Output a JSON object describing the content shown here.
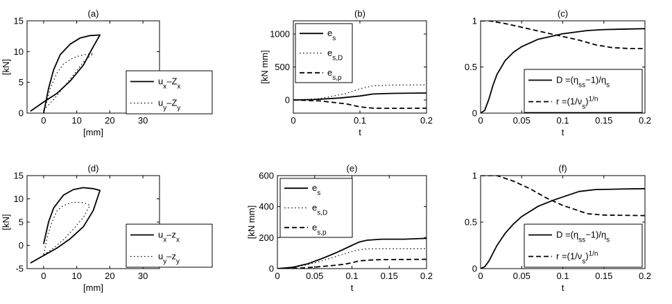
{
  "colors": {
    "line": "#000000",
    "background": "#ffffff"
  },
  "chart_data": [
    {
      "id": "a",
      "type": "line",
      "title": "(a)",
      "xlabel": "[mm]",
      "ylabel": "[kN]",
      "xlim": [
        -5,
        35
      ],
      "ylim": [
        0,
        15
      ],
      "xticks": [
        0,
        10,
        20,
        30
      ],
      "yticks": [
        0,
        5,
        10,
        15
      ],
      "grid": false,
      "legend_position": "bottom-right",
      "series": [
        {
          "name": "u_x–Z_x",
          "name_main": "u",
          "name_sub": "x",
          "name_mid": "–Z",
          "name_sub2": "x",
          "style": "solid",
          "points": [
            [
              -4,
              0.3
            ],
            [
              0,
              1.8
            ],
            [
              4,
              3.2
            ],
            [
              8,
              5.2
            ],
            [
              12,
              7.8
            ],
            [
              15,
              10.8
            ],
            [
              17,
              12.7
            ],
            [
              14,
              12.6
            ],
            [
              11,
              12.2
            ],
            [
              8,
              11.2
            ],
            [
              5,
              9.5
            ],
            [
              3,
              7
            ],
            [
              1.5,
              4
            ],
            [
              0,
              0
            ]
          ]
        },
        {
          "name": "u_y–Z_y",
          "name_main": "u",
          "name_sub": "y",
          "name_mid": "–Z",
          "name_sub2": "y",
          "style": "dotted",
          "points": [
            [
              0,
              0.5
            ],
            [
              3,
              2.2
            ],
            [
              6,
              4.2
            ],
            [
              9,
              6.2
            ],
            [
              12,
              8.3
            ],
            [
              15,
              9.7
            ],
            [
              12,
              9.5
            ],
            [
              9,
              9
            ],
            [
              6,
              8
            ],
            [
              4,
              6.5
            ],
            [
              2,
              4
            ],
            [
              0.8,
              1.5
            ],
            [
              0,
              0.5
            ]
          ]
        }
      ]
    },
    {
      "id": "b",
      "type": "line",
      "title": "(b)",
      "xlabel": "t",
      "ylabel": "[kN mm]",
      "xlim": [
        0,
        0.2
      ],
      "ylim": [
        -200,
        1200
      ],
      "xticks": [
        0,
        0.1,
        0.2
      ],
      "yticks": [
        0,
        500,
        1000
      ],
      "grid": false,
      "legend_position": "top-left",
      "series": [
        {
          "name": "e_s",
          "name_main": "e",
          "name_sub": "s",
          "style": "solid",
          "points": [
            [
              0,
              0
            ],
            [
              0.03,
              5
            ],
            [
              0.07,
              30
            ],
            [
              0.1,
              60
            ],
            [
              0.12,
              90
            ],
            [
              0.15,
              100
            ],
            [
              0.2,
              105
            ]
          ]
        },
        {
          "name": "e_s,D",
          "name_main": "e",
          "name_sub": "s,D",
          "style": "dotted",
          "points": [
            [
              0,
              0
            ],
            [
              0.04,
              20
            ],
            [
              0.08,
              100
            ],
            [
              0.1,
              170
            ],
            [
              0.12,
              215
            ],
            [
              0.15,
              225
            ],
            [
              0.2,
              230
            ]
          ]
        },
        {
          "name": "e_s,p",
          "name_main": "e",
          "name_sub": "s,p",
          "style": "dashed",
          "points": [
            [
              0,
              0
            ],
            [
              0.04,
              -15
            ],
            [
              0.08,
              -60
            ],
            [
              0.1,
              -105
            ],
            [
              0.12,
              -125
            ],
            [
              0.15,
              -127
            ],
            [
              0.2,
              -125
            ]
          ]
        }
      ]
    },
    {
      "id": "c",
      "type": "line",
      "title": "(c)",
      "xlabel": "t",
      "ylabel": "",
      "xlim": [
        0,
        0.2
      ],
      "ylim": [
        0,
        1
      ],
      "xticks": [
        0,
        0.05,
        0.1,
        0.15,
        0.2
      ],
      "yticks": [
        0,
        0.5,
        1
      ],
      "grid": false,
      "legend_position": "bottom-right",
      "series": [
        {
          "name": "D_s =(η_s−1)/η_s",
          "name_main": "D",
          "name_sub": "s",
          "name_rest": " =(η",
          "name_sub2": "s",
          "name_tail": "−1)/η",
          "name_sub3": "s",
          "style": "solid",
          "points": [
            [
              0,
              0
            ],
            [
              0.005,
              0.03
            ],
            [
              0.01,
              0.15
            ],
            [
              0.015,
              0.3
            ],
            [
              0.02,
              0.42
            ],
            [
              0.03,
              0.57
            ],
            [
              0.04,
              0.66
            ],
            [
              0.05,
              0.72
            ],
            [
              0.07,
              0.8
            ],
            [
              0.1,
              0.86
            ],
            [
              0.13,
              0.895
            ],
            [
              0.15,
              0.905
            ],
            [
              0.2,
              0.915
            ]
          ]
        },
        {
          "name": "r =(1/ν_s)^1/n",
          "name_main": "r",
          "name_rest": " =(1/ν",
          "name_sub": "s",
          "name_tail": ")",
          "name_sup": "1/n",
          "style": "dashed",
          "points": [
            [
              0,
              1
            ],
            [
              0.01,
              1
            ],
            [
              0.03,
              0.97
            ],
            [
              0.05,
              0.93
            ],
            [
              0.07,
              0.89
            ],
            [
              0.09,
              0.85
            ],
            [
              0.1,
              0.83
            ],
            [
              0.12,
              0.79
            ],
            [
              0.14,
              0.74
            ],
            [
              0.16,
              0.71
            ],
            [
              0.18,
              0.7
            ],
            [
              0.2,
              0.7
            ]
          ]
        }
      ]
    },
    {
      "id": "d",
      "type": "line",
      "title": "(d)",
      "xlabel": "[mm]",
      "ylabel": "[kN]",
      "xlim": [
        -5,
        35
      ],
      "ylim": [
        -5,
        15
      ],
      "xticks": [
        0,
        10,
        20,
        30
      ],
      "yticks": [
        -5,
        0,
        5,
        10,
        15
      ],
      "grid": false,
      "legend_position": "bottom-right",
      "series": [
        {
          "name": "u_x–z_x",
          "name_main": "u",
          "name_sub": "x",
          "name_mid": "–z",
          "name_sub2": "x",
          "style": "solid",
          "points": [
            [
              -4,
              -3.8
            ],
            [
              0,
              -2.2
            ],
            [
              4,
              -0.6
            ],
            [
              8,
              1.4
            ],
            [
              12,
              4
            ],
            [
              15,
              7.5
            ],
            [
              17,
              11.8
            ],
            [
              15,
              12.2
            ],
            [
              12,
              12.4
            ],
            [
              9,
              12
            ],
            [
              6,
              10.8
            ],
            [
              3,
              8
            ],
            [
              1.5,
              5
            ],
            [
              0,
              0.3
            ]
          ]
        },
        {
          "name": "u_y–z_y",
          "name_main": "u",
          "name_sub": "y",
          "name_mid": "–z",
          "name_sub2": "y",
          "style": "dotted",
          "points": [
            [
              0,
              -2
            ],
            [
              3,
              -0.6
            ],
            [
              6,
              1.2
            ],
            [
              9,
              3.5
            ],
            [
              12,
              6
            ],
            [
              14,
              8.6
            ],
            [
              12,
              9.2
            ],
            [
              9,
              9.3
            ],
            [
              6,
              8.6
            ],
            [
              4,
              7.4
            ],
            [
              2.5,
              5
            ],
            [
              1.2,
              2
            ],
            [
              0,
              -2
            ]
          ]
        }
      ]
    },
    {
      "id": "e",
      "type": "line",
      "title": "(e)",
      "xlabel": "t",
      "ylabel": "[kN mm]",
      "xlim": [
        0,
        0.2
      ],
      "ylim": [
        0,
        600
      ],
      "xticks": [
        0,
        0.05,
        0.1,
        0.15,
        0.2
      ],
      "yticks": [
        0,
        200,
        400,
        600
      ],
      "grid": false,
      "legend_position": "top-left",
      "series": [
        {
          "name": "e_s",
          "name_main": "e",
          "name_sub": "s",
          "style": "solid",
          "points": [
            [
              0,
              0
            ],
            [
              0.02,
              8
            ],
            [
              0.04,
              30
            ],
            [
              0.06,
              65
            ],
            [
              0.08,
              105
            ],
            [
              0.1,
              150
            ],
            [
              0.11,
              172
            ],
            [
              0.12,
              183
            ],
            [
              0.14,
              190
            ],
            [
              0.17,
              190
            ],
            [
              0.2,
              195
            ]
          ]
        },
        {
          "name": "e_s,D",
          "name_main": "e",
          "name_sub": "s,D",
          "style": "dotted",
          "points": [
            [
              0,
              0
            ],
            [
              0.02,
              5
            ],
            [
              0.04,
              25
            ],
            [
              0.06,
              50
            ],
            [
              0.08,
              80
            ],
            [
              0.1,
              110
            ],
            [
              0.11,
              122
            ],
            [
              0.12,
              127
            ],
            [
              0.14,
              128
            ],
            [
              0.2,
              128
            ]
          ]
        },
        {
          "name": "e_s,p",
          "name_main": "e",
          "name_sub": "s,p",
          "style": "dashed",
          "points": [
            [
              0,
              0
            ],
            [
              0.03,
              3
            ],
            [
              0.05,
              10
            ],
            [
              0.07,
              18
            ],
            [
              0.09,
              28
            ],
            [
              0.1,
              38
            ],
            [
              0.11,
              50
            ],
            [
              0.13,
              57
            ],
            [
              0.15,
              58
            ],
            [
              0.2,
              60
            ]
          ]
        }
      ]
    },
    {
      "id": "f",
      "type": "line",
      "title": "(f)",
      "xlabel": "t",
      "ylabel": "",
      "xlim": [
        0,
        0.2
      ],
      "ylim": [
        0,
        1
      ],
      "xticks": [
        0,
        0.05,
        0.1,
        0.15,
        0.2
      ],
      "yticks": [
        0,
        0.5,
        1
      ],
      "grid": false,
      "legend_position": "bottom-right",
      "series": [
        {
          "name": "D_s =(η_s−1)/η_s",
          "name_main": "D",
          "name_sub": "s",
          "name_rest": " =(η",
          "name_sub2": "s",
          "name_tail": "−1)/η",
          "name_sub3": "s",
          "style": "solid",
          "points": [
            [
              0,
              0
            ],
            [
              0.005,
              0.02
            ],
            [
              0.01,
              0.08
            ],
            [
              0.02,
              0.25
            ],
            [
              0.03,
              0.38
            ],
            [
              0.04,
              0.48
            ],
            [
              0.05,
              0.56
            ],
            [
              0.07,
              0.67
            ],
            [
              0.09,
              0.74
            ],
            [
              0.1,
              0.77
            ],
            [
              0.12,
              0.83
            ],
            [
              0.14,
              0.85
            ],
            [
              0.17,
              0.855
            ],
            [
              0.2,
              0.86
            ]
          ]
        },
        {
          "name": "r =(1/ν_s)^1/n",
          "name_main": "r",
          "name_rest": " =(1/ν",
          "name_sub": "s",
          "name_tail": ")",
          "name_sup": "1/n",
          "style": "dashed",
          "points": [
            [
              0,
              1
            ],
            [
              0.02,
              1
            ],
            [
              0.04,
              0.94
            ],
            [
              0.06,
              0.86
            ],
            [
              0.08,
              0.76
            ],
            [
              0.1,
              0.68
            ],
            [
              0.12,
              0.62
            ],
            [
              0.13,
              0.59
            ],
            [
              0.15,
              0.575
            ],
            [
              0.2,
              0.57
            ]
          ]
        }
      ]
    }
  ]
}
